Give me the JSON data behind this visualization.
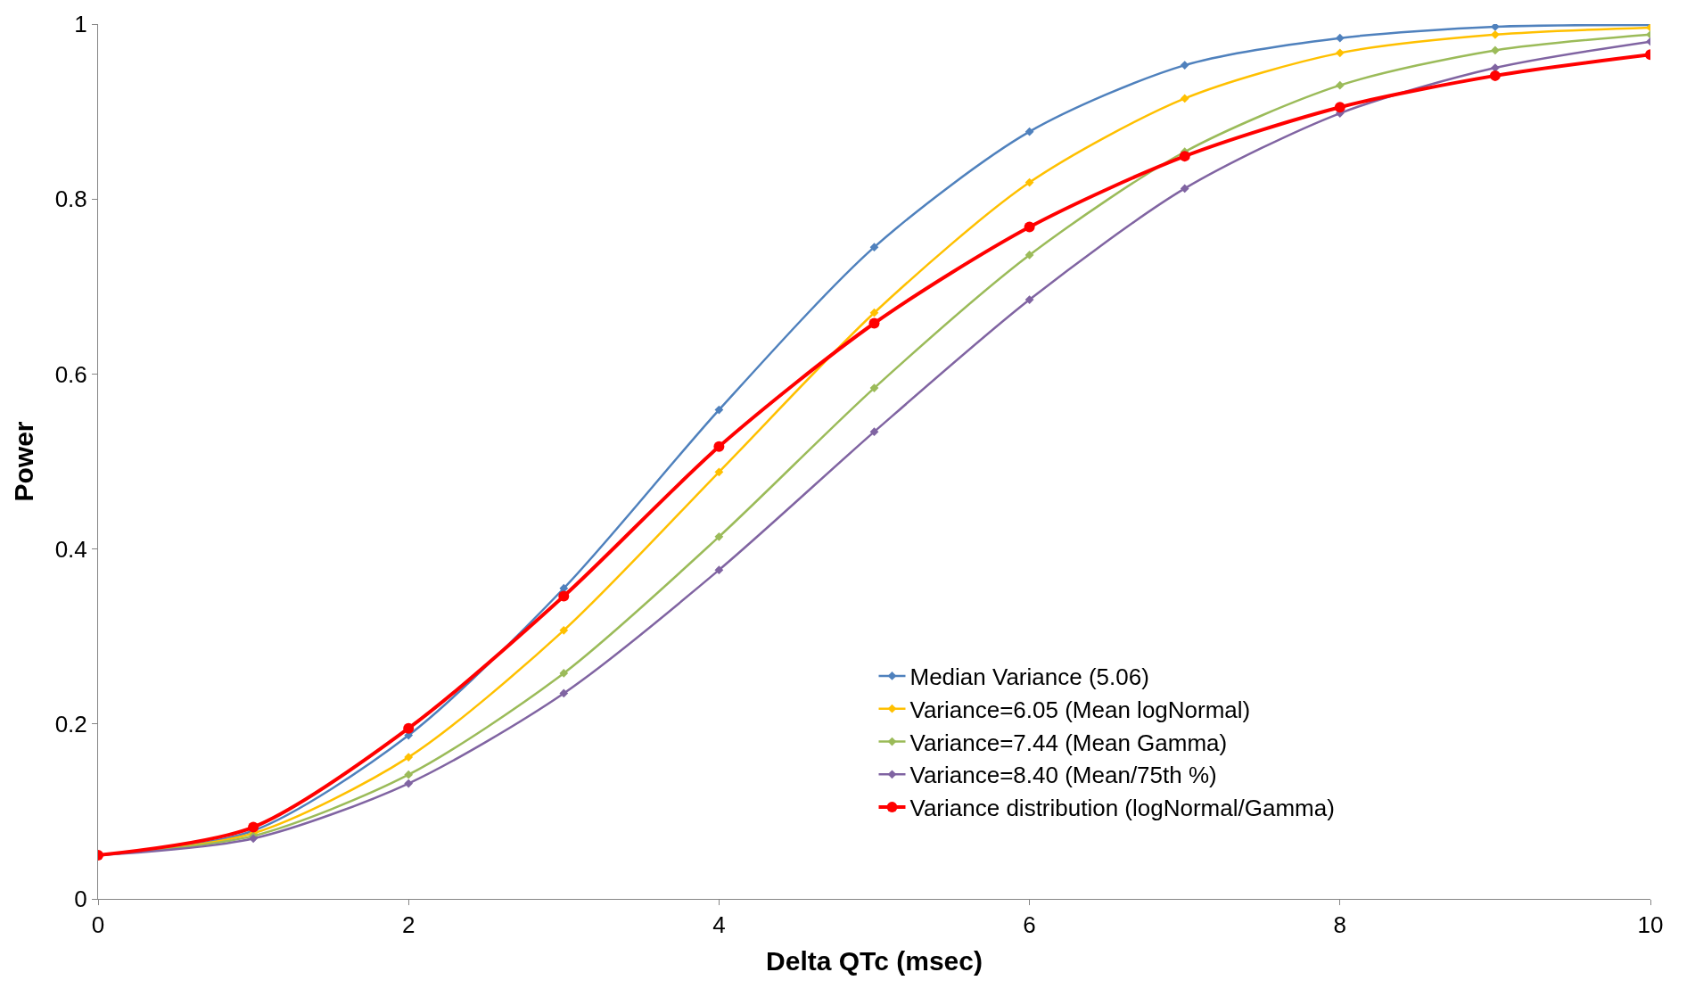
{
  "chart_data": {
    "type": "line",
    "xlabel": "Delta QTc (msec)",
    "ylabel": "Power",
    "x": [
      0,
      1,
      2,
      3,
      4,
      5,
      6,
      7,
      8,
      9,
      10
    ],
    "xlim": [
      0,
      10
    ],
    "xticks": [
      0,
      2,
      4,
      6,
      8,
      10
    ],
    "ylim": [
      0,
      1
    ],
    "yticks": [
      0,
      0.2,
      0.4,
      0.6,
      0.8,
      1
    ],
    "legend": "bottom right",
    "line_style": "solid",
    "series": [
      {
        "name": "Median Variance (5.06)",
        "color": "#4f81bd",
        "marker": "diamond",
        "values": [
          0.05,
          0.078,
          0.187,
          0.355,
          0.559,
          0.745,
          0.877,
          0.953,
          0.984,
          0.997,
          0.999
        ]
      },
      {
        "name": "Variance=6.05 (Mean logNormal)",
        "color": "#ffc000",
        "marker": "diamond",
        "values": [
          0.05,
          0.075,
          0.162,
          0.307,
          0.488,
          0.67,
          0.819,
          0.915,
          0.967,
          0.988,
          0.996
        ]
      },
      {
        "name": "Variance=7.44 (Mean Gamma)",
        "color": "#9bbb59",
        "marker": "diamond",
        "values": [
          0.05,
          0.072,
          0.142,
          0.258,
          0.414,
          0.584,
          0.736,
          0.854,
          0.93,
          0.97,
          0.988
        ]
      },
      {
        "name": "Variance=8.40 (Mean/75th %)",
        "color": "#8064a2",
        "marker": "diamond",
        "values": [
          0.05,
          0.069,
          0.132,
          0.235,
          0.376,
          0.534,
          0.685,
          0.812,
          0.898,
          0.95,
          0.98
        ]
      },
      {
        "name": "Variance distribution (logNormal/Gamma)",
        "color": "#ff0000",
        "marker": "circle",
        "values": [
          0.05,
          0.082,
          0.195,
          0.346,
          0.517,
          0.658,
          0.768,
          0.849,
          0.905,
          0.941,
          0.965
        ]
      }
    ]
  }
}
